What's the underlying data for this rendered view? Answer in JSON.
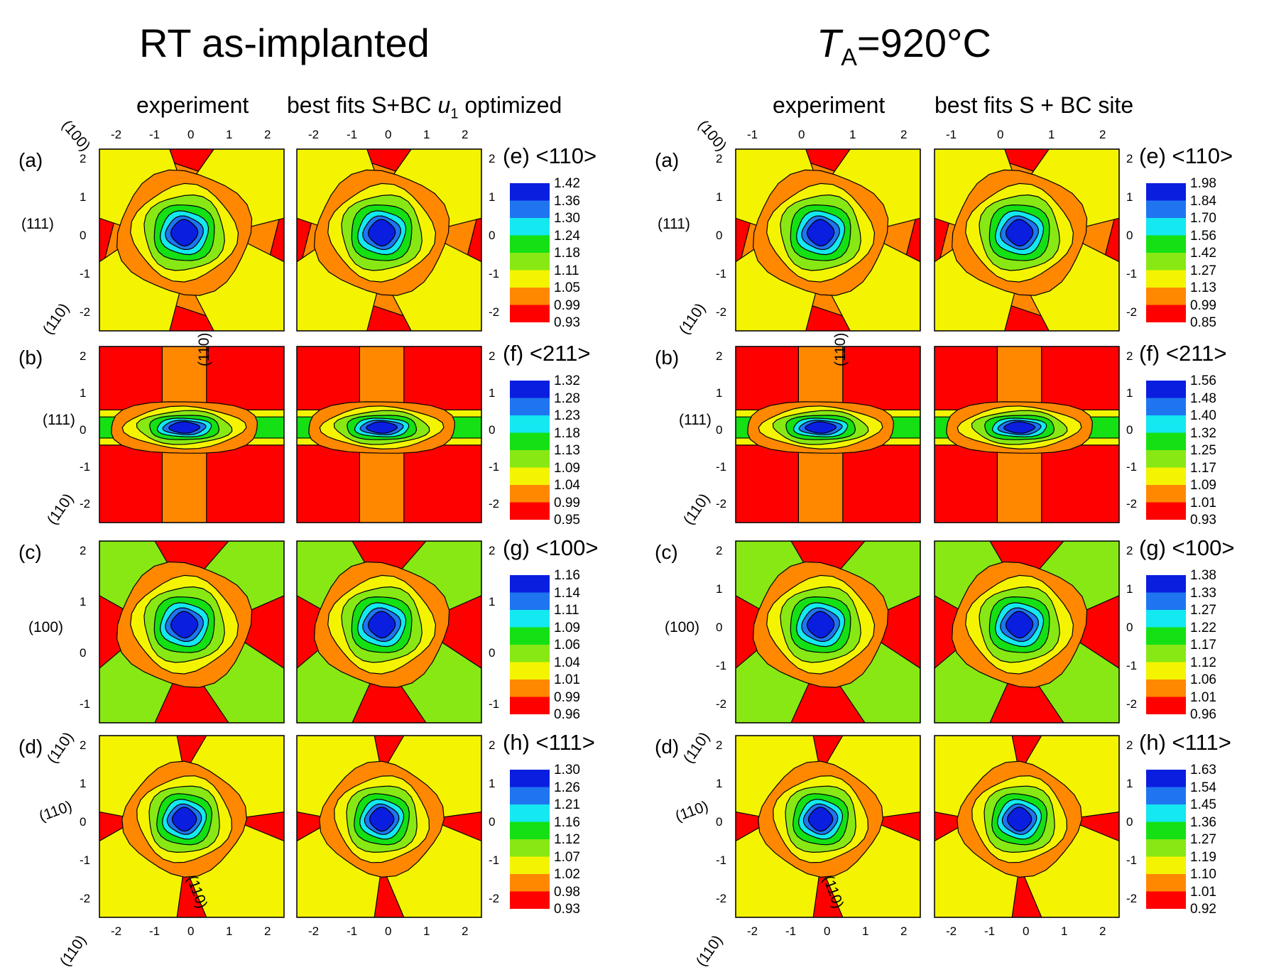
{
  "figure": {
    "groups": [
      {
        "title": "RT as-implanted",
        "title_prefix": "",
        "title_sub": "",
        "title_suffix": "",
        "col_titles": [
          "experiment",
          "best fits S+BC "
        ],
        "col_title_italic": "u",
        "col_title_sub": "1",
        "col_title_tail": " optimized",
        "plane_labels": {
          "p100": "(100)",
          "a111": "(111)",
          "a110": "(110)",
          "b110v": "(110)",
          "b111": "(111)",
          "b110": "(110)",
          "c100": "(100)",
          "c110": "(110)",
          "d110": "(110)",
          "d110b": "(110)",
          "d110c": "(110)"
        }
      },
      {
        "title": "",
        "title_prefix": "T",
        "title_sub": "A",
        "title_suffix": "=920°C",
        "col_titles": [
          "experiment",
          "best fits S + BC site"
        ],
        "col_title_italic": "",
        "col_title_sub": "",
        "col_title_tail": "",
        "plane_labels": {
          "p100": "(100)",
          "a111": "(111)",
          "a110": "(110)",
          "b110v": "(110)",
          "b111": "(111)",
          "b110": "(110)",
          "c100": "(100)",
          "c110": "(110)",
          "d110": "(110)",
          "d110b": "(110)",
          "d110c": "(110)"
        }
      }
    ],
    "row_labels": [
      "(a)",
      "(b)",
      "(c)",
      "(d)"
    ]
  },
  "chart_data": [
    {
      "type": "heatmap",
      "group": "RT as-implanted",
      "row": "(a)",
      "axis": "<110>",
      "label": "(e)",
      "legend": [
        "1.42",
        "1.36",
        "1.30",
        "1.24",
        "1.18",
        "1.11",
        "1.05",
        "0.99",
        "0.93"
      ],
      "colors": [
        "#0a1ee0",
        "#1f75f0",
        "#14e8f0",
        "#14e014",
        "#88e814",
        "#f4f400",
        "#ff8800",
        "#ff0000"
      ],
      "xlim": [
        -2.6,
        2.6
      ],
      "ylim": [
        -2.4,
        2.2
      ],
      "xticks_left": [
        "-2",
        "-1",
        "0",
        "1",
        "2"
      ],
      "xticks_right": [
        "-2",
        "-1",
        "0",
        "1",
        "2"
      ],
      "yticks_left": [
        "2",
        "1",
        "0",
        "-1",
        "-2"
      ],
      "yticks_right": [
        "2",
        "1",
        "0",
        "-1",
        "-2"
      ]
    },
    {
      "type": "heatmap",
      "group": "RT as-implanted",
      "row": "(b)",
      "axis": "<211>",
      "label": "(f)",
      "legend": [
        "1.32",
        "1.28",
        "1.23",
        "1.18",
        "1.13",
        "1.09",
        "1.04",
        "0.99",
        "0.95"
      ],
      "yticks_left": [
        "2",
        "1",
        "0",
        "-1",
        "-2"
      ],
      "yticks_right": [
        "2",
        "1",
        "0",
        "-1",
        "-2"
      ]
    },
    {
      "type": "heatmap",
      "group": "RT as-implanted",
      "row": "(c)",
      "axis": "<100>",
      "label": "(g)",
      "legend": [
        "1.16",
        "1.14",
        "1.11",
        "1.09",
        "1.06",
        "1.04",
        "1.01",
        "0.99",
        "0.96"
      ],
      "yticks_left": [
        "2",
        "1",
        "0",
        "-1"
      ],
      "yticks_right": [
        "2",
        "1",
        "0",
        "-1"
      ]
    },
    {
      "type": "heatmap",
      "group": "RT as-implanted",
      "row": "(d)",
      "axis": "<111>",
      "label": "(h)",
      "legend": [
        "1.30",
        "1.26",
        "1.21",
        "1.16",
        "1.12",
        "1.07",
        "1.02",
        "0.98",
        "0.93"
      ],
      "yticks_left": [
        "2",
        "1",
        "0",
        "-1",
        "-2"
      ],
      "yticks_right": [
        "2",
        "1",
        "0",
        "-1",
        "-2"
      ],
      "xticks_left": [
        "-2",
        "-1",
        "0",
        "1",
        "2"
      ],
      "xticks_right": [
        "-2",
        "-1",
        "0",
        "1",
        "2"
      ]
    },
    {
      "type": "heatmap",
      "group": "TA=920°C",
      "row": "(a)",
      "axis": "<110>",
      "label": "(e)",
      "legend": [
        "1.98",
        "1.84",
        "1.70",
        "1.56",
        "1.42",
        "1.27",
        "1.13",
        "0.99",
        "0.85"
      ],
      "xticks_left": [
        "-1",
        "0",
        "1",
        "2"
      ],
      "xticks_right": [
        "-1",
        "0",
        "1",
        "2"
      ],
      "yticks_left": [
        "2",
        "1",
        "0",
        "-1",
        "-2"
      ],
      "yticks_right": [
        "2",
        "1",
        "0",
        "-1",
        "-2"
      ]
    },
    {
      "type": "heatmap",
      "group": "TA=920°C",
      "row": "(b)",
      "axis": "<211>",
      "label": "(f)",
      "legend": [
        "1.56",
        "1.48",
        "1.40",
        "1.32",
        "1.25",
        "1.17",
        "1.09",
        "1.01",
        "0.93"
      ],
      "yticks_left": [
        "2",
        "1",
        "0",
        "-1",
        "-2"
      ],
      "yticks_right": [
        "2",
        "1",
        "0",
        "-1",
        "-2"
      ]
    },
    {
      "type": "heatmap",
      "group": "TA=920°C",
      "row": "(c)",
      "axis": "<100>",
      "label": "(g)",
      "legend": [
        "1.38",
        "1.33",
        "1.27",
        "1.22",
        "1.17",
        "1.12",
        "1.06",
        "1.01",
        "0.96"
      ],
      "yticks_left": [
        "2",
        "1",
        "0",
        "-1",
        "-2"
      ],
      "yticks_right": [
        "2",
        "1",
        "0",
        "-1",
        "-2"
      ]
    },
    {
      "type": "heatmap",
      "group": "TA=920°C",
      "row": "(d)",
      "axis": "<111>",
      "label": "(h)",
      "legend": [
        "1.63",
        "1.54",
        "1.45",
        "1.36",
        "1.27",
        "1.19",
        "1.10",
        "1.01",
        "0.92"
      ],
      "yticks_left": [
        "2",
        "1",
        "0",
        "-1",
        "-2"
      ],
      "yticks_right": [
        "2",
        "1",
        "0",
        "-1",
        "-2"
      ],
      "xticks_left": [
        "-2",
        "-1",
        "0",
        "1",
        "2"
      ],
      "xticks_right": [
        "-2",
        "-1",
        "0",
        "1",
        "2"
      ]
    }
  ],
  "colors": {
    "levels": [
      "#0a1ee0",
      "#1f75f0",
      "#14e8f0",
      "#14e014",
      "#88e814",
      "#f4f400",
      "#ff8800",
      "#ff0000"
    ],
    "contour": "#000000",
    "frame": "#000000"
  }
}
